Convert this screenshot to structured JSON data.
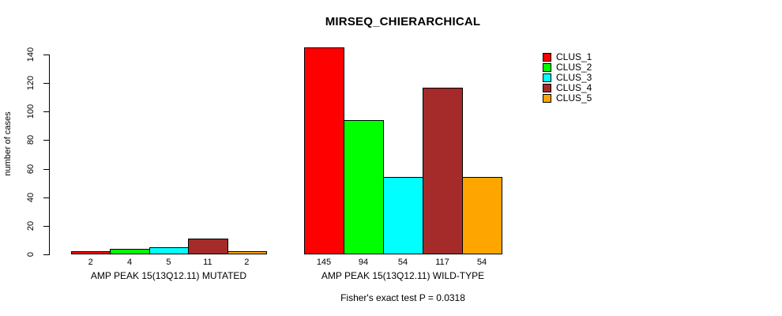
{
  "chart_data": {
    "type": "bar",
    "title": "MIRSEQ_CHIERARCHICAL",
    "ylabel": "number of cases",
    "ylim": [
      0,
      140
    ],
    "yticks": [
      0,
      20,
      40,
      60,
      80,
      100,
      120,
      140
    ],
    "grid": false,
    "legend_position": "top-right",
    "series": [
      "CLUS_1",
      "CLUS_2",
      "CLUS_3",
      "CLUS_4",
      "CLUS_5"
    ],
    "colors": [
      "#FF0000",
      "#00FF00",
      "#00FFFF",
      "#A52A2A",
      "#FFA500"
    ],
    "groups": [
      {
        "label": "AMP PEAK 15(13Q12.11) MUTATED",
        "values": [
          2,
          4,
          5,
          11,
          2
        ]
      },
      {
        "label": "AMP PEAK 15(13Q12.11) WILD-TYPE",
        "values": [
          145,
          94,
          54,
          117,
          54
        ]
      }
    ],
    "annotation": "Fisher's exact test P = 0.0318"
  }
}
